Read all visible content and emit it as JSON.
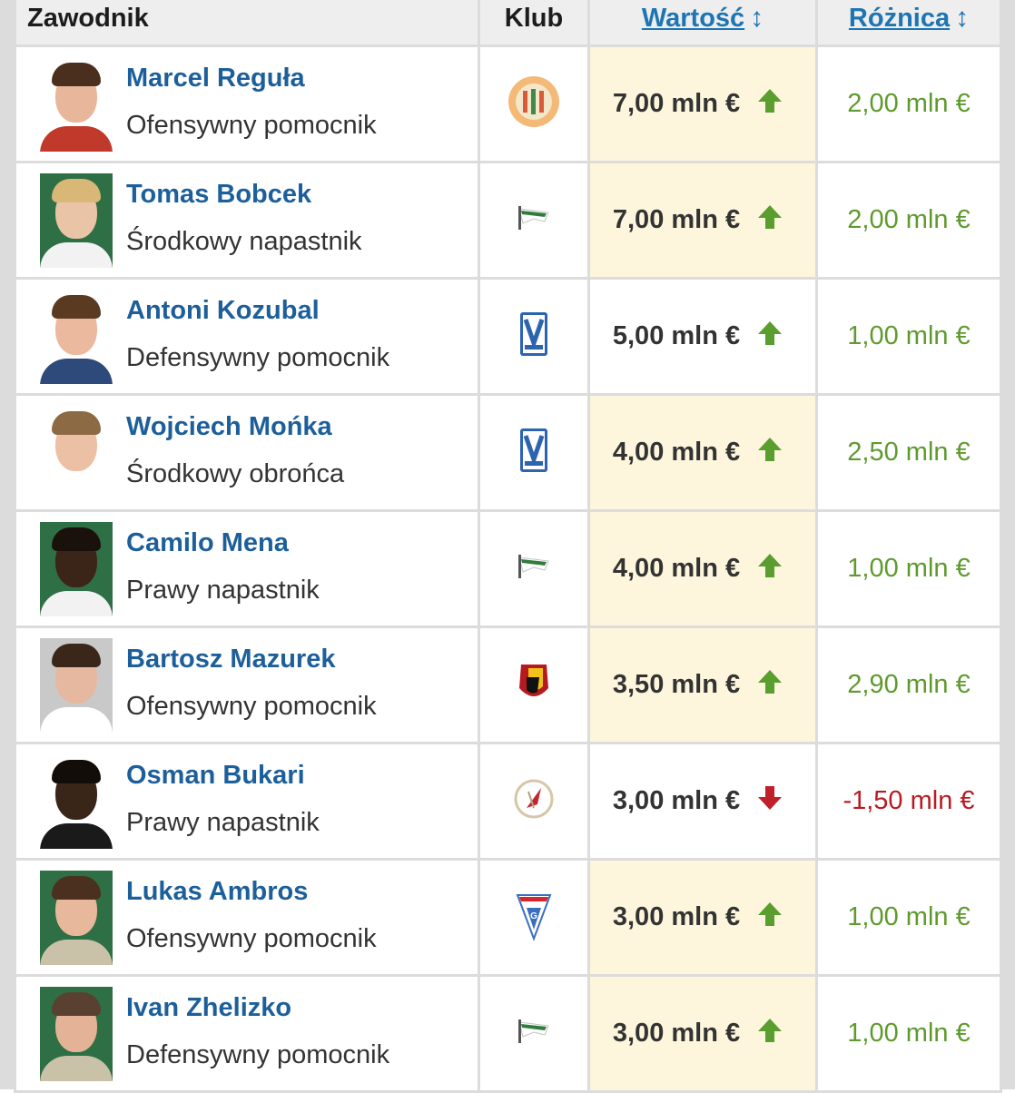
{
  "header": {
    "player_col": "Zawodnik",
    "club_col": "Klub",
    "value_col": "Wartość",
    "diff_col": "Różnica",
    "sort_icon": "↕"
  },
  "colors": {
    "name": "#1d5f9a",
    "link": "#1d75b3",
    "positive": "#5f9a2e",
    "negative": "#b81c22",
    "value_bg": "#fdf6dd"
  },
  "rows": [
    {
      "name": "Marcel Reguła",
      "position": "Ofensywny pomocnik",
      "club_crest": "zaglebie-lubin-crest",
      "value": "7,00 mln €",
      "trend": "up",
      "diff": "2,00 mln €",
      "diff_sign": "positive"
    },
    {
      "name": "Tomas Bobcek",
      "position": "Środkowy napastnik",
      "club_crest": "lechia-gdansk-crest",
      "value": "7,00 mln €",
      "trend": "up",
      "diff": "2,00 mln €",
      "diff_sign": "positive"
    },
    {
      "name": "Antoni Kozubal",
      "position": "Defensywny pomocnik",
      "club_crest": "lech-poznan-crest",
      "value": "5,00 mln €",
      "trend": "up",
      "diff": "1,00 mln €",
      "diff_sign": "positive"
    },
    {
      "name": "Wojciech Mońka",
      "position": "Środkowy obrońca",
      "club_crest": "lech-poznan-crest",
      "value": "4,00 mln €",
      "trend": "up",
      "diff": "2,50 mln €",
      "diff_sign": "positive"
    },
    {
      "name": "Camilo Mena",
      "position": "Prawy napastnik",
      "club_crest": "lechia-gdansk-crest",
      "value": "4,00 mln €",
      "trend": "up",
      "diff": "1,00 mln €",
      "diff_sign": "positive"
    },
    {
      "name": "Bartosz Mazurek",
      "position": "Ofensywny pomocnik",
      "club_crest": "jagiellonia-crest",
      "value": "3,50 mln €",
      "trend": "up",
      "diff": "2,90 mln €",
      "diff_sign": "positive"
    },
    {
      "name": "Osman Bukari",
      "position": "Prawy napastnik",
      "club_crest": "widzew-lodz-crest",
      "value": "3,00 mln €",
      "trend": "down",
      "diff": "-1,50 mln €",
      "diff_sign": "negative"
    },
    {
      "name": "Lukas Ambros",
      "position": "Ofensywny pomocnik",
      "club_crest": "gornik-zabrze-crest",
      "value": "3,00 mln €",
      "trend": "up",
      "diff": "1,00 mln €",
      "diff_sign": "positive"
    },
    {
      "name": "Ivan Zhelizko",
      "position": "Defensywny pomocnik",
      "club_crest": "lechia-gdansk-crest",
      "value": "3,00 mln €",
      "trend": "up",
      "diff": "1,00 mln €",
      "diff_sign": "positive"
    }
  ]
}
